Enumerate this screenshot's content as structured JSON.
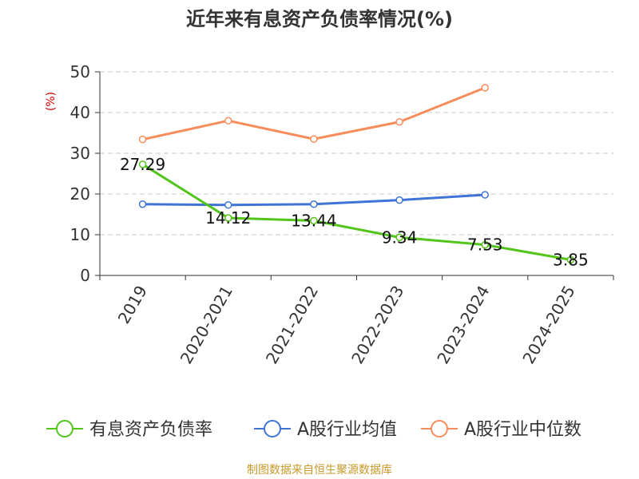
{
  "chart_data": {
    "type": "line",
    "title": "近年来有息资产负债率情况(%)",
    "ylabel": "(%)",
    "categories": [
      "2019",
      "2020-2021",
      "2021-2022",
      "2022-2023",
      "2023-2024",
      "2024-2025"
    ],
    "ylim": [
      0,
      50
    ],
    "yticks": [
      0,
      10,
      20,
      30,
      40,
      50
    ],
    "grid": true,
    "legend_position": "bottom",
    "series": [
      {
        "name": "有息资产负债率",
        "color": "#52c41a",
        "values": [
          27.29,
          14.12,
          13.44,
          9.34,
          7.53,
          3.85
        ],
        "labels": [
          "27.29",
          "14.12",
          "13.44",
          "9.34",
          "7.53",
          "3.85"
        ]
      },
      {
        "name": "A股行业均值",
        "color": "#3f74d6",
        "values": [
          17.5,
          17.3,
          17.5,
          18.5,
          19.8,
          null
        ]
      },
      {
        "name": "A股行业中位数",
        "color": "#f88c5a",
        "values": [
          33.4,
          38.0,
          33.5,
          37.7,
          46.1,
          null
        ]
      }
    ],
    "source": "制图数据来自恒生聚源数据库"
  }
}
